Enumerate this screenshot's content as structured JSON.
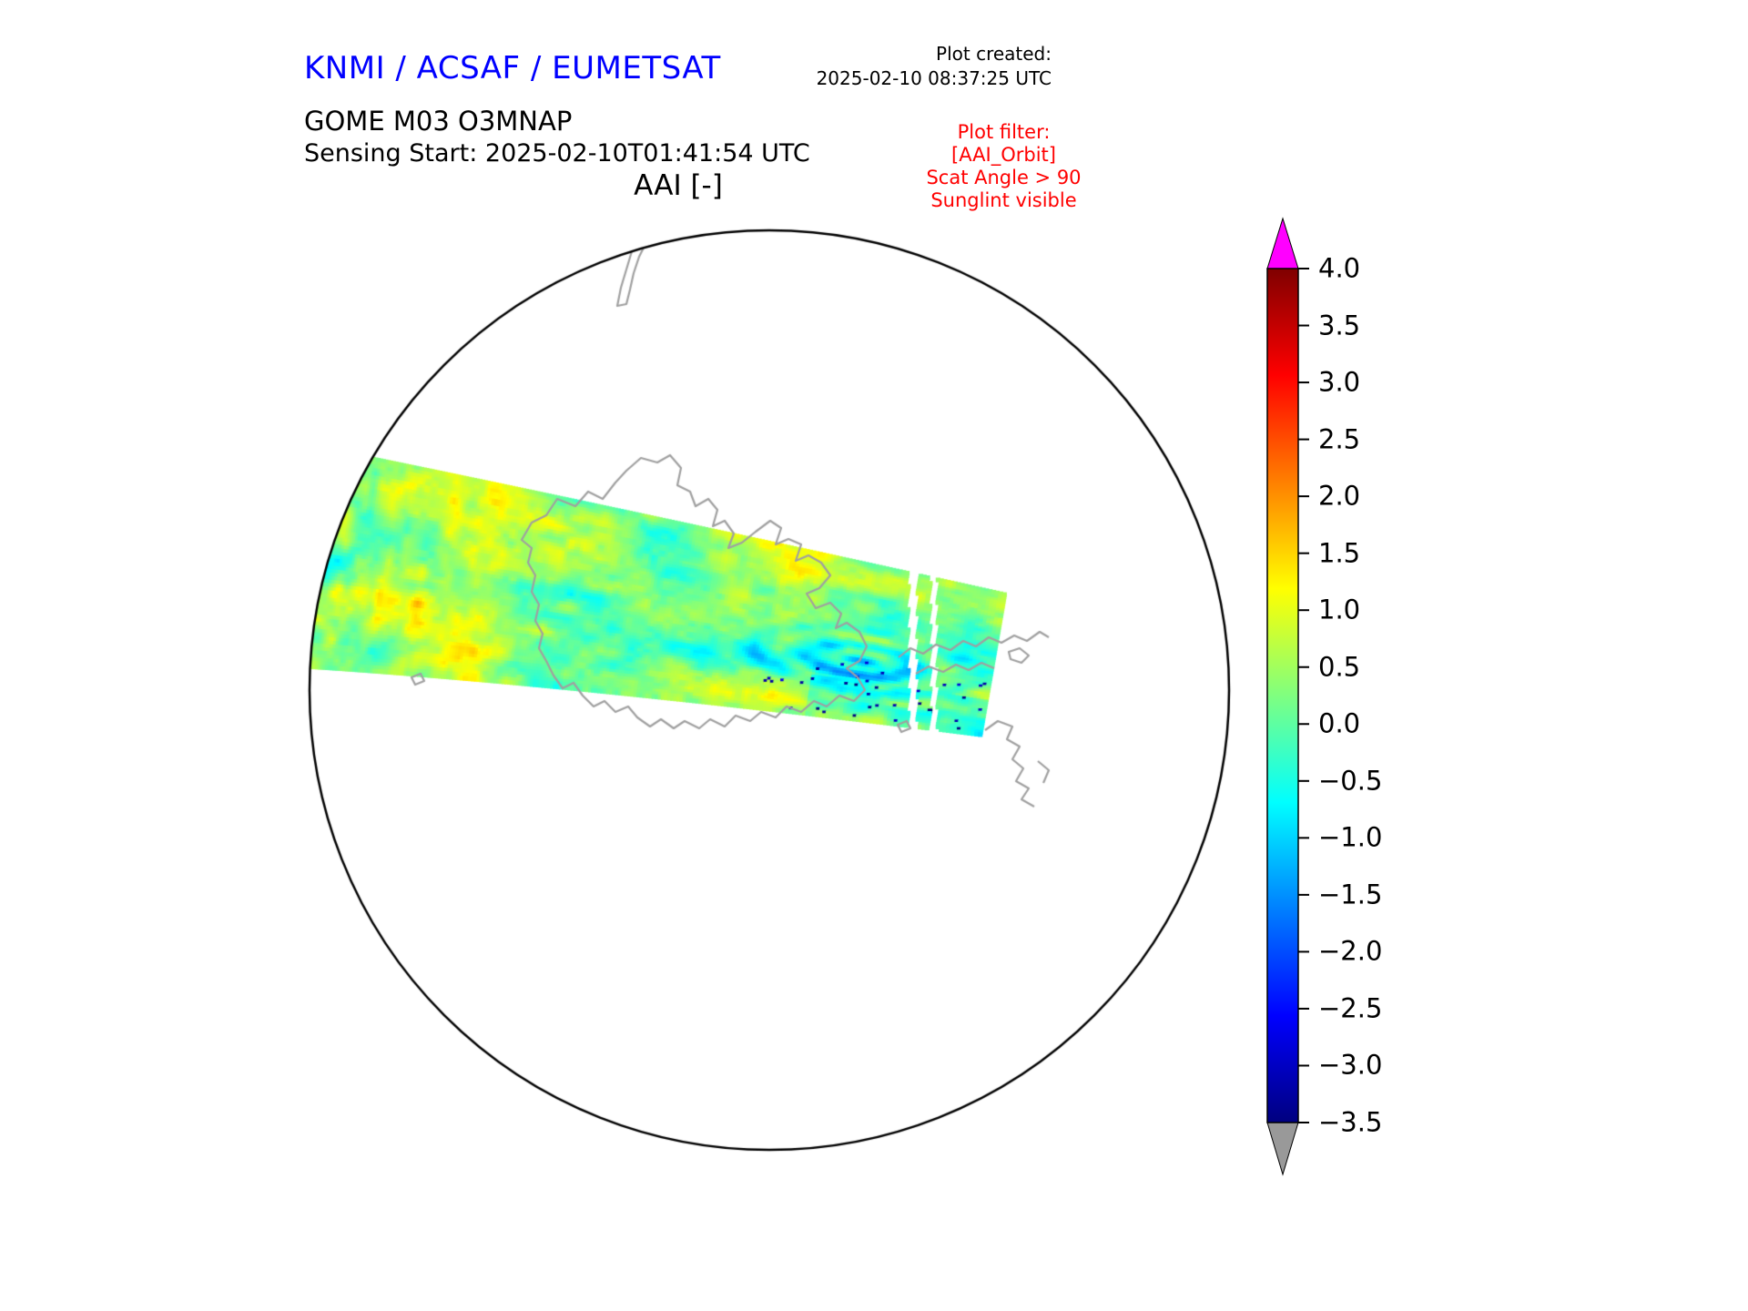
{
  "header": {
    "brand": "KNMI / ACSAF / EUMETSAT",
    "plot_created_label": "Plot created:",
    "plot_created_value": "2025-02-10 08:37:25 UTC"
  },
  "subtitle": {
    "instrument": "GOME M03 O3MNAP",
    "sensing_start": "Sensing Start: 2025-02-10T01:41:54 UTC"
  },
  "plot": {
    "title": "AAI [-]"
  },
  "filter": {
    "title": "Plot filter:",
    "lines": [
      "[AAI_Orbit]",
      "Scat Angle > 90",
      "Sunglint visible"
    ]
  },
  "colorbar": {
    "tick_labels": [
      "4.0",
      "3.5",
      "3.0",
      "2.5",
      "2.0",
      "1.5",
      "1.0",
      "0.5",
      "0.0",
      "−0.5",
      "−1.0",
      "−1.5",
      "−2.0",
      "−2.5",
      "−3.0",
      "−3.5"
    ]
  },
  "colors": {
    "brand_blue": "#0000ff",
    "filter_red": "#ff0000",
    "coastline": "#a0a0a0",
    "circle_stroke": "#000000",
    "over_arrow": "#ff00ff",
    "under_arrow": "#999999"
  },
  "chart_data": {
    "type": "heatmap",
    "title": "AAI [-]",
    "product": "GOME M03 O3MNAP",
    "sensing_start_utc": "2025-02-10T01:41:54 UTC",
    "plot_created_utc": "2025-02-10 08:37:25 UTC",
    "projection": "south polar stereographic",
    "colorbar": {
      "ticks": [
        4.0,
        3.5,
        3.0,
        2.5,
        2.0,
        1.5,
        1.0,
        0.5,
        0.0,
        -0.5,
        -1.0,
        -1.5,
        -2.0,
        -2.5,
        -3.0,
        -3.5
      ],
      "vmin": -3.5,
      "vmax": 4.0,
      "colormap": "jet",
      "over_color": "magenta",
      "under_color": "gray",
      "orientation": "vertical",
      "position": "right"
    },
    "swath": {
      "description": "Single GOME-2 (Metop-C) orbit swath crossing the Antarctic sector from the left limb of the polar disc toward the pole; AAI mostly between −1.5 and +1.2 (cyan/green/yellow), with isolated deep-blue pockets near −3 and two narrow white data gaps near the swath end.",
      "typical_value_range": [
        -1.5,
        1.2
      ],
      "minimum_pockets": -3.0,
      "filters_applied": [
        "AAI_Orbit",
        "Scat Angle > 90",
        "Sunglint visible"
      ]
    }
  }
}
